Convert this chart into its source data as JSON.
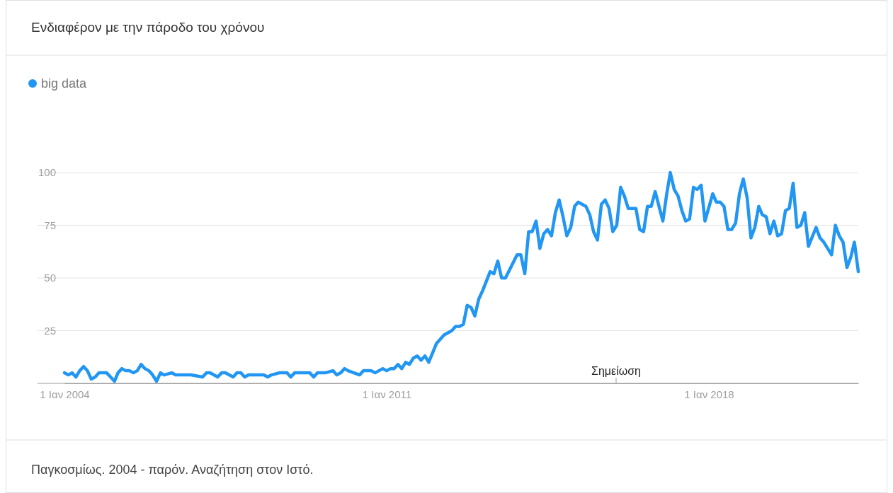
{
  "chart_data": {
    "type": "line",
    "title": "Ενδιαφέρον με την πάροδο του χρόνου",
    "x": [
      "2004-01",
      "2004-02",
      "2004-03",
      "2004-04",
      "2004-05",
      "2004-06",
      "2004-07",
      "2004-08",
      "2004-09",
      "2004-10",
      "2004-12",
      "2005-01",
      "2005-02",
      "2005-03",
      "2005-04",
      "2005-05",
      "2005-06",
      "2005-07",
      "2005-08",
      "2005-09",
      "2005-10",
      "2005-11",
      "2005-12",
      "2006-01",
      "2006-02",
      "2006-03",
      "2006-05",
      "2006-06",
      "2006-07",
      "2006-10",
      "2007-01",
      "2007-02",
      "2007-03",
      "2007-04",
      "2007-05",
      "2007-06",
      "2007-07",
      "2007-09",
      "2007-10",
      "2007-11",
      "2007-12",
      "2008-01",
      "2008-05",
      "2008-06",
      "2008-07",
      "2008-09",
      "2008-11",
      "2008-12",
      "2009-01",
      "2009-05",
      "2009-06",
      "2009-07",
      "2009-08",
      "2009-09",
      "2009-11",
      "2009-12",
      "2010-01",
      "2010-02",
      "2010-03",
      "2010-06",
      "2010-07",
      "2010-09",
      "2010-10",
      "2010-12",
      "2011-01",
      "2011-02",
      "2011-03",
      "2011-04",
      "2011-05",
      "2011-06",
      "2011-07",
      "2011-08",
      "2011-09",
      "2011-10",
      "2011-11",
      "2011-12",
      "2012-02",
      "2012-04",
      "2012-06",
      "2012-07",
      "2012-08",
      "2012-09",
      "2012-10",
      "2012-11",
      "2012-12",
      "2013-01",
      "2013-02",
      "2013-04",
      "2013-05",
      "2013-06",
      "2013-07",
      "2013-08",
      "2013-11",
      "2013-12",
      "2014-01",
      "2014-02",
      "2014-03",
      "2014-04",
      "2014-05",
      "2014-06",
      "2014-07",
      "2014-08",
      "2014-09",
      "2014-10",
      "2014-11",
      "2014-12",
      "2015-01",
      "2015-02",
      "2015-03",
      "2015-05",
      "2015-06",
      "2015-07",
      "2015-08",
      "2015-09",
      "2015-10",
      "2015-11",
      "2015-12",
      "2016-01",
      "2016-02",
      "2016-03",
      "2016-04",
      "2016-06",
      "2016-07",
      "2016-08",
      "2016-09",
      "2016-10",
      "2016-11",
      "2017-01",
      "2017-02",
      "2017-03",
      "2017-04",
      "2017-05",
      "2017-06",
      "2017-07",
      "2017-08",
      "2017-09",
      "2017-10",
      "2017-11",
      "2017-12",
      "2018-02",
      "2018-03",
      "2018-04",
      "2018-05",
      "2018-06",
      "2018-07",
      "2018-08",
      "2018-09",
      "2018-10",
      "2018-11",
      "2018-12",
      "2019-01",
      "2019-02",
      "2019-03",
      "2019-04",
      "2019-05",
      "2019-06",
      "2019-07",
      "2019-08",
      "2019-09",
      "2019-10",
      "2019-11",
      "2019-12",
      "2020-01",
      "2020-02",
      "2020-03",
      "2020-05",
      "2020-06",
      "2020-07",
      "2020-09",
      "2020-10",
      "2020-11",
      "2020-12",
      "2021-01",
      "2021-02",
      "2021-03",
      "2021-04"
    ],
    "series": [
      {
        "name": "big data",
        "color": "#2196f3",
        "values": [
          5,
          4,
          5,
          3,
          6,
          8,
          6,
          2,
          3,
          5,
          5,
          3,
          1,
          5,
          7,
          6,
          6,
          5,
          6,
          9,
          7,
          6,
          4,
          1,
          5,
          4,
          5,
          4,
          4,
          4,
          3,
          5,
          5,
          4,
          3,
          5,
          5,
          3,
          5,
          5,
          3,
          4,
          4,
          3,
          4,
          5,
          5,
          3,
          5,
          5,
          3,
          5,
          5,
          5,
          6,
          4,
          5,
          7,
          6,
          4,
          6,
          6,
          5,
          7,
          6,
          7,
          7,
          9,
          7,
          10,
          9,
          12,
          13,
          11,
          13,
          10,
          19,
          23,
          25,
          27,
          27,
          28,
          37,
          36,
          32,
          40,
          44,
          53,
          52,
          58,
          50,
          50,
          61,
          61,
          52,
          72,
          72,
          77,
          64,
          71,
          73,
          70,
          81,
          87,
          79,
          70,
          74,
          84,
          86,
          84,
          80,
          72,
          68,
          85,
          87,
          83,
          72,
          75,
          93,
          89,
          83,
          83,
          73,
          72,
          84,
          84,
          91,
          77,
          90,
          100,
          92,
          89,
          82,
          77,
          78,
          93,
          92,
          94,
          77,
          90,
          86,
          86,
          84,
          73,
          73,
          76,
          90,
          97,
          88,
          69,
          74,
          84,
          80,
          79,
          71,
          77,
          70,
          71,
          82,
          83,
          95,
          74,
          75,
          81,
          65,
          74,
          69,
          67,
          61,
          75,
          70,
          67,
          55,
          60,
          67,
          53
        ]
      }
    ],
    "xlim": [
      "2004-01",
      "2021-04"
    ],
    "xticks": [
      {
        "value": "2004-01-01",
        "label": "1 Ιαν 2004"
      },
      {
        "value": "2011-01-01",
        "label": "1 Ιαν 2011"
      },
      {
        "value": "2018-01-01",
        "label": "1 Ιαν 2018"
      }
    ],
    "ylim": [
      0,
      100
    ],
    "yticks": [
      {
        "value": 0,
        "label": null
      },
      25,
      50,
      75,
      100
    ],
    "grid": "y",
    "legend": "top left",
    "annotations": [
      "Σημείωση",
      "Παγκοσμίως. 2004 - παρόν. Αναζήτηση στον Ιστό."
    ]
  }
}
